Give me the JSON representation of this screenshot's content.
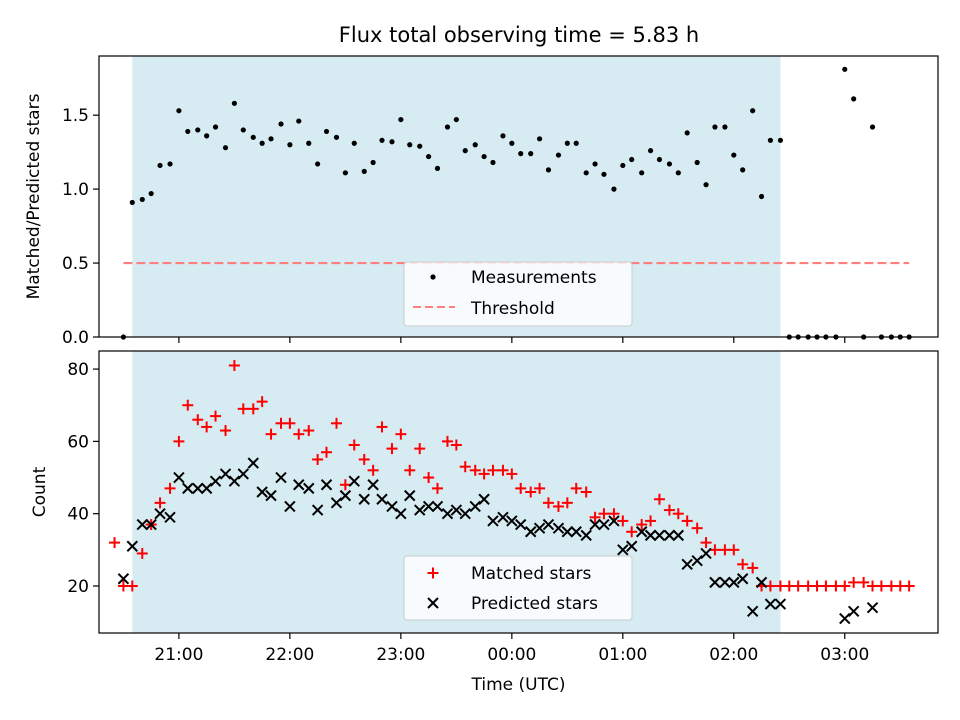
{
  "title": "Flux total observing time = 5.83 h",
  "colors": {
    "shade": "#add8e6",
    "measurement": "#000000",
    "threshold": "#ff7f7f",
    "matched": "#ff0000",
    "predicted": "#000000"
  },
  "chart_data": [
    {
      "type": "scatter",
      "panel": "top",
      "ylabel": "Matched/Predicted stars",
      "xlabel": "",
      "ylim": [
        0,
        1.9
      ],
      "yticks": [
        0,
        0.5,
        1.0,
        1.5
      ],
      "ytick_labels": [
        "0.0",
        "0.5",
        "1.0",
        "1.5"
      ],
      "xlim": [
        20.28,
        27.84
      ],
      "shaded_span": [
        20.58,
        26.42
      ],
      "threshold": {
        "y": 0.5,
        "x_start": 20.5,
        "x_end": 27.58,
        "label": "Threshold"
      },
      "legend": {
        "placement": "lower-center",
        "entries": [
          "Measurements",
          "Threshold"
        ]
      },
      "series": [
        {
          "name": "Measurements",
          "marker": "dot",
          "x": [
            20.5,
            20.58,
            20.67,
            20.75,
            20.83,
            20.92,
            21.0,
            21.08,
            21.17,
            21.25,
            21.33,
            21.42,
            21.5,
            21.58,
            21.67,
            21.75,
            21.83,
            21.92,
            22.0,
            22.08,
            22.17,
            22.25,
            22.33,
            22.42,
            22.5,
            22.58,
            22.67,
            22.75,
            22.83,
            22.92,
            23.0,
            23.08,
            23.17,
            23.25,
            23.33,
            23.42,
            23.5,
            23.58,
            23.67,
            23.75,
            23.83,
            23.92,
            24.0,
            24.08,
            24.17,
            24.25,
            24.33,
            24.42,
            24.5,
            24.58,
            24.67,
            24.75,
            24.83,
            24.92,
            25.0,
            25.08,
            25.17,
            25.25,
            25.33,
            25.42,
            25.5,
            25.58,
            25.67,
            25.75,
            25.83,
            25.92,
            26.0,
            26.08,
            26.17,
            26.25,
            26.33,
            26.42,
            26.5,
            26.58,
            26.67,
            26.75,
            26.83,
            26.92,
            27.0,
            27.08,
            27.17,
            27.25,
            27.33,
            27.42,
            27.5,
            27.58
          ],
          "y": [
            0.0,
            0.91,
            0.93,
            0.97,
            1.16,
            1.17,
            1.53,
            1.39,
            1.4,
            1.36,
            1.42,
            1.28,
            1.58,
            1.4,
            1.35,
            1.31,
            1.34,
            1.44,
            1.3,
            1.46,
            1.31,
            1.17,
            1.39,
            1.35,
            1.11,
            1.31,
            1.12,
            1.18,
            1.33,
            1.32,
            1.47,
            1.3,
            1.29,
            1.22,
            1.14,
            1.42,
            1.47,
            1.26,
            1.3,
            1.22,
            1.18,
            1.36,
            1.31,
            1.24,
            1.24,
            1.34,
            1.13,
            1.23,
            1.31,
            1.31,
            1.11,
            1.17,
            1.1,
            1.0,
            1.16,
            1.2,
            1.11,
            1.26,
            1.2,
            1.17,
            1.11,
            1.38,
            1.18,
            1.03,
            1.42,
            1.42,
            1.23,
            1.13,
            1.53,
            0.95,
            1.33,
            1.33,
            0.0,
            0.0,
            0.0,
            0.0,
            0.0,
            0.0,
            1.81,
            1.61,
            0.0,
            1.42,
            0.0,
            0.0,
            0.0,
            0.0
          ]
        }
      ]
    },
    {
      "type": "scatter",
      "panel": "bottom",
      "ylabel": "Count",
      "xlabel": "Time (UTC)",
      "ylim": [
        7,
        85
      ],
      "yticks": [
        20,
        40,
        60,
        80
      ],
      "ytick_labels": [
        "20",
        "40",
        "60",
        "80"
      ],
      "xlim": [
        20.28,
        27.84
      ],
      "xticks": [
        21,
        22,
        23,
        24,
        25,
        26,
        27
      ],
      "xtick_labels": [
        "21:00",
        "22:00",
        "23:00",
        "00:00",
        "01:00",
        "02:00",
        "03:00"
      ],
      "shaded_span": [
        20.58,
        26.42
      ],
      "legend": {
        "placement": "lower-center",
        "entries": [
          "Matched stars",
          "Predicted stars"
        ]
      },
      "series": [
        {
          "name": "Matched stars",
          "marker": "plus",
          "x": [
            20.42,
            20.5,
            20.58,
            20.67,
            20.75,
            20.83,
            20.92,
            21.0,
            21.08,
            21.17,
            21.25,
            21.33,
            21.42,
            21.5,
            21.58,
            21.67,
            21.75,
            21.83,
            21.92,
            22.0,
            22.08,
            22.17,
            22.25,
            22.33,
            22.42,
            22.5,
            22.58,
            22.67,
            22.75,
            22.83,
            22.92,
            23.0,
            23.08,
            23.17,
            23.25,
            23.33,
            23.42,
            23.5,
            23.58,
            23.67,
            23.75,
            23.83,
            23.92,
            24.0,
            24.08,
            24.17,
            24.25,
            24.33,
            24.42,
            24.5,
            24.58,
            24.67,
            24.75,
            24.83,
            24.92,
            25.0,
            25.08,
            25.17,
            25.25,
            25.33,
            25.42,
            25.5,
            25.58,
            25.67,
            25.75,
            25.83,
            25.92,
            26.0,
            26.08,
            26.17,
            26.25,
            26.33,
            26.42,
            26.5,
            26.58,
            26.67,
            26.75,
            26.83,
            26.92,
            27.0,
            27.08,
            27.17,
            27.25,
            27.33,
            27.42,
            27.5,
            27.58
          ],
          "y": [
            32,
            20,
            20,
            29,
            37,
            43,
            47,
            60,
            70,
            66,
            64,
            67,
            63,
            81,
            69,
            69,
            71,
            62,
            65,
            65,
            62,
            63,
            55,
            57,
            65,
            48,
            59,
            55,
            52,
            64,
            58,
            62,
            52,
            58,
            50,
            47,
            60,
            59,
            53,
            52,
            51,
            52,
            52,
            51,
            47,
            46,
            47,
            43,
            42,
            43,
            47,
            46,
            39,
            40,
            40,
            38,
            35,
            37,
            38,
            44,
            41,
            40,
            38,
            36,
            32,
            30,
            30,
            30,
            26,
            25,
            20,
            20,
            20,
            20,
            20,
            20,
            20,
            20,
            20,
            20,
            21,
            21,
            20,
            20,
            20,
            20,
            20
          ]
        },
        {
          "name": "Predicted stars",
          "marker": "x",
          "x": [
            20.5,
            20.58,
            20.67,
            20.75,
            20.83,
            20.92,
            21.0,
            21.08,
            21.17,
            21.25,
            21.33,
            21.42,
            21.5,
            21.58,
            21.67,
            21.75,
            21.83,
            21.92,
            22.0,
            22.08,
            22.17,
            22.25,
            22.33,
            22.42,
            22.5,
            22.58,
            22.67,
            22.75,
            22.83,
            22.92,
            23.0,
            23.08,
            23.17,
            23.25,
            23.33,
            23.42,
            23.5,
            23.58,
            23.67,
            23.75,
            23.83,
            23.92,
            24.0,
            24.08,
            24.17,
            24.25,
            24.33,
            24.42,
            24.5,
            24.58,
            24.67,
            24.75,
            24.83,
            24.92,
            25.0,
            25.08,
            25.17,
            25.25,
            25.33,
            25.42,
            25.5,
            25.58,
            25.67,
            25.75,
            25.83,
            25.92,
            26.0,
            26.08,
            26.17,
            26.25,
            26.33,
            26.42,
            27.0,
            27.08,
            27.25
          ],
          "y": [
            22,
            31,
            37,
            37,
            40,
            39,
            50,
            47,
            47,
            47,
            49,
            51,
            49,
            51,
            54,
            46,
            45,
            50,
            42,
            48,
            47,
            41,
            48,
            43,
            45,
            49,
            44,
            48,
            44,
            42,
            40,
            45,
            41,
            42,
            42,
            40,
            41,
            40,
            42,
            44,
            38,
            39,
            38,
            37,
            35,
            36,
            37,
            36,
            35,
            35,
            34,
            37,
            37,
            38,
            30,
            31,
            35,
            34,
            34,
            34,
            34,
            26,
            27,
            29,
            21,
            21,
            21,
            22,
            13,
            21,
            15,
            15,
            11,
            13,
            14
          ]
        }
      ]
    }
  ]
}
